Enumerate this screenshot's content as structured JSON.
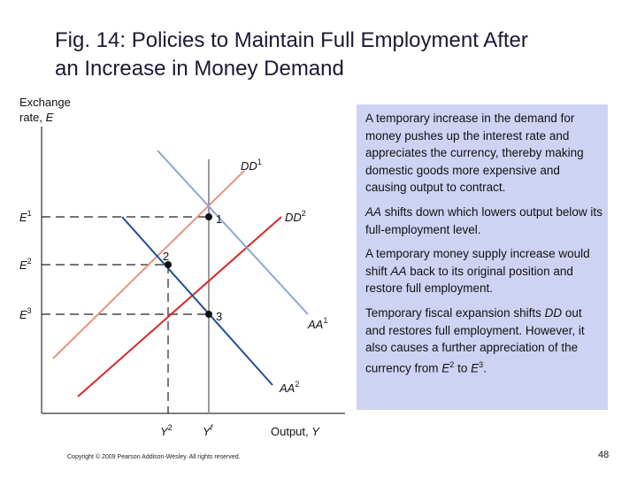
{
  "title": {
    "line1": "Fig. 14: Policies to Maintain Full Employment After",
    "line2": "an Increase in Money Demand"
  },
  "diagram": {
    "y_axis": {
      "line1": "Exchange",
      "line2_prefix": "rate, ",
      "line2_var": "E"
    },
    "x_axis": {
      "prefix": "Output, ",
      "var": "Y"
    },
    "exchange_rates": {
      "e1": {
        "base": "E",
        "sup": "1"
      },
      "e2": {
        "base": "E",
        "sup": "2"
      },
      "e3": {
        "base": "E",
        "sup": "3"
      }
    },
    "outputs": {
      "y2": {
        "base": "Y",
        "sup": "2"
      },
      "yf": {
        "base": "Y",
        "sup": "f"
      }
    },
    "curves": {
      "dd1": {
        "base": "DD",
        "sup": "1"
      },
      "dd2": {
        "base": "DD",
        "sup": "2"
      },
      "aa1": {
        "base": "AA",
        "sup": "1"
      },
      "aa2": {
        "base": "AA",
        "sup": "2"
      }
    },
    "points": {
      "p1": "1",
      "p2": "2",
      "p3": "3"
    },
    "colors": {
      "dd1": "#e8937a",
      "dd2": "#d42a2a",
      "aa1": "#8aa6cf",
      "aa2": "#1f4e96",
      "full_employment_line": "#9a9a9a",
      "axis": "#333333",
      "callout_bg": "#cfd3f3"
    }
  },
  "callout": {
    "p1": "A temporary increase in the demand for money pushes up the interest rate and appreciates the currency, thereby making domestic goods more expensive and causing output to contract.",
    "p2_var": "AA",
    "p2_rest": " shifts down which lowers output below its full-employment level.",
    "p3_a": "A temporary money supply increase would shift ",
    "p3_var": "AA",
    "p3_b": " back to its original position and restore full employment.",
    "p4_a": "Temporary fiscal expansion shifts ",
    "p4_var": "DD",
    "p4_b": " out and restores full employment. However, it also causes a further appreciation of the currency from ",
    "p4_e2": "E",
    "p4_e2_sup": "2",
    "p4_c": " to ",
    "p4_e3": "E",
    "p4_e3_sup": "3",
    "p4_d": "."
  },
  "footer": {
    "copyright": "Copyright © 2009 Pearson Addison-Wesley. All rights reserved.",
    "page": "48"
  }
}
